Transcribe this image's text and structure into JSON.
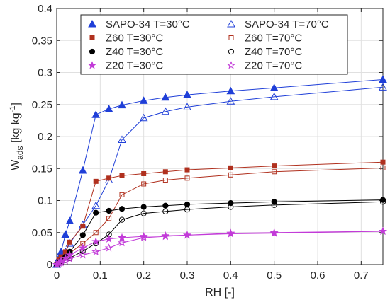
{
  "chart_data": {
    "type": "line",
    "xlabel": "RH [-]",
    "ylabel": {
      "main": "W",
      "sub": "ads",
      "unit_open": " [kg kg",
      "unit_sup": "-1",
      "unit_close": "]"
    },
    "xlim": [
      0,
      0.75
    ],
    "ylim": [
      0,
      0.4
    ],
    "xticks": [
      0,
      0.1,
      0.2,
      0.3,
      0.4,
      0.5,
      0.6,
      0.7
    ],
    "xtick_labels": [
      "0",
      "0.1",
      "0.2",
      "0.3",
      "0.4",
      "0.5",
      "0.6",
      "0.7"
    ],
    "yticks": [
      0,
      0.05,
      0.1,
      0.15,
      0.2,
      0.25,
      0.3,
      0.35,
      0.4
    ],
    "ytick_labels": [
      "0",
      "0.05",
      "0.1",
      "0.15",
      "0.2",
      "0.25",
      "0.3",
      "0.35",
      "0.4"
    ],
    "grid": true,
    "legend_placement": "top-center",
    "series": [
      {
        "name": "SAPO-34 T=30°C",
        "color": "#1f3fd8",
        "marker": "triangle",
        "filled": true,
        "x": [
          0,
          0.005,
          0.01,
          0.02,
          0.03,
          0.06,
          0.09,
          0.12,
          0.15,
          0.2,
          0.25,
          0.3,
          0.4,
          0.5,
          0.75
        ],
        "y": [
          0,
          0.01,
          0.02,
          0.047,
          0.068,
          0.147,
          0.234,
          0.243,
          0.249,
          0.256,
          0.261,
          0.265,
          0.271,
          0.276,
          0.289
        ]
      },
      {
        "name": "SAPO-34 T=70°C",
        "color": "#1f3fd8",
        "marker": "triangle",
        "filled": false,
        "x": [
          0,
          0.005,
          0.01,
          0.02,
          0.03,
          0.06,
          0.09,
          0.12,
          0.15,
          0.2,
          0.25,
          0.3,
          0.4,
          0.5,
          0.75
        ],
        "y": [
          0,
          0.005,
          0.01,
          0.02,
          0.033,
          0.062,
          0.092,
          0.132,
          0.195,
          0.229,
          0.239,
          0.246,
          0.255,
          0.262,
          0.277
        ]
      },
      {
        "name": "Z60 T=30°C",
        "color": "#b0301e",
        "marker": "square",
        "filled": true,
        "x": [
          0,
          0.005,
          0.01,
          0.02,
          0.03,
          0.06,
          0.09,
          0.12,
          0.15,
          0.2,
          0.25,
          0.3,
          0.4,
          0.5,
          0.75
        ],
        "y": [
          0,
          0.008,
          0.012,
          0.02,
          0.035,
          0.06,
          0.13,
          0.135,
          0.139,
          0.142,
          0.145,
          0.148,
          0.151,
          0.154,
          0.16
        ]
      },
      {
        "name": "Z60 T=70°C",
        "color": "#b0301e",
        "marker": "square",
        "filled": false,
        "x": [
          0,
          0.005,
          0.01,
          0.02,
          0.03,
          0.06,
          0.09,
          0.12,
          0.15,
          0.2,
          0.25,
          0.3,
          0.4,
          0.5,
          0.75
        ],
        "y": [
          0,
          0.004,
          0.006,
          0.012,
          0.018,
          0.033,
          0.05,
          0.072,
          0.109,
          0.126,
          0.132,
          0.135,
          0.14,
          0.145,
          0.151
        ]
      },
      {
        "name": "Z40 T=30°C",
        "color": "#000000",
        "marker": "circle",
        "filled": true,
        "x": [
          0,
          0.005,
          0.01,
          0.02,
          0.03,
          0.06,
          0.09,
          0.12,
          0.15,
          0.2,
          0.25,
          0.3,
          0.4,
          0.5,
          0.75
        ],
        "y": [
          0,
          0.004,
          0.006,
          0.012,
          0.02,
          0.046,
          0.081,
          0.084,
          0.087,
          0.09,
          0.092,
          0.094,
          0.096,
          0.098,
          0.101
        ]
      },
      {
        "name": "Z40 T=70°C",
        "color": "#000000",
        "marker": "circle",
        "filled": false,
        "x": [
          0,
          0.005,
          0.01,
          0.02,
          0.03,
          0.06,
          0.09,
          0.12,
          0.15,
          0.2,
          0.25,
          0.3,
          0.4,
          0.5,
          0.75
        ],
        "y": [
          0,
          0.002,
          0.003,
          0.007,
          0.01,
          0.021,
          0.033,
          0.047,
          0.07,
          0.08,
          0.083,
          0.086,
          0.09,
          0.093,
          0.098
        ]
      },
      {
        "name": "Z20 T=30°C",
        "color": "#c23bd8",
        "marker": "star",
        "filled": true,
        "x": [
          0,
          0.005,
          0.01,
          0.02,
          0.03,
          0.06,
          0.09,
          0.12,
          0.15,
          0.2,
          0.25,
          0.3,
          0.4,
          0.5,
          0.75
        ],
        "y": [
          0,
          0.003,
          0.006,
          0.01,
          0.015,
          0.026,
          0.036,
          0.04,
          0.042,
          0.044,
          0.045,
          0.046,
          0.048,
          0.049,
          0.052
        ]
      },
      {
        "name": "Z20 T=70°C",
        "color": "#c23bd8",
        "marker": "star",
        "filled": false,
        "x": [
          0,
          0.005,
          0.01,
          0.02,
          0.03,
          0.06,
          0.09,
          0.12,
          0.15,
          0.2,
          0.25,
          0.3,
          0.4,
          0.5,
          0.75
        ],
        "y": [
          0,
          0.002,
          0.003,
          0.006,
          0.009,
          0.015,
          0.02,
          0.026,
          0.034,
          0.042,
          0.044,
          0.046,
          0.049,
          0.05,
          0.052
        ]
      }
    ]
  }
}
